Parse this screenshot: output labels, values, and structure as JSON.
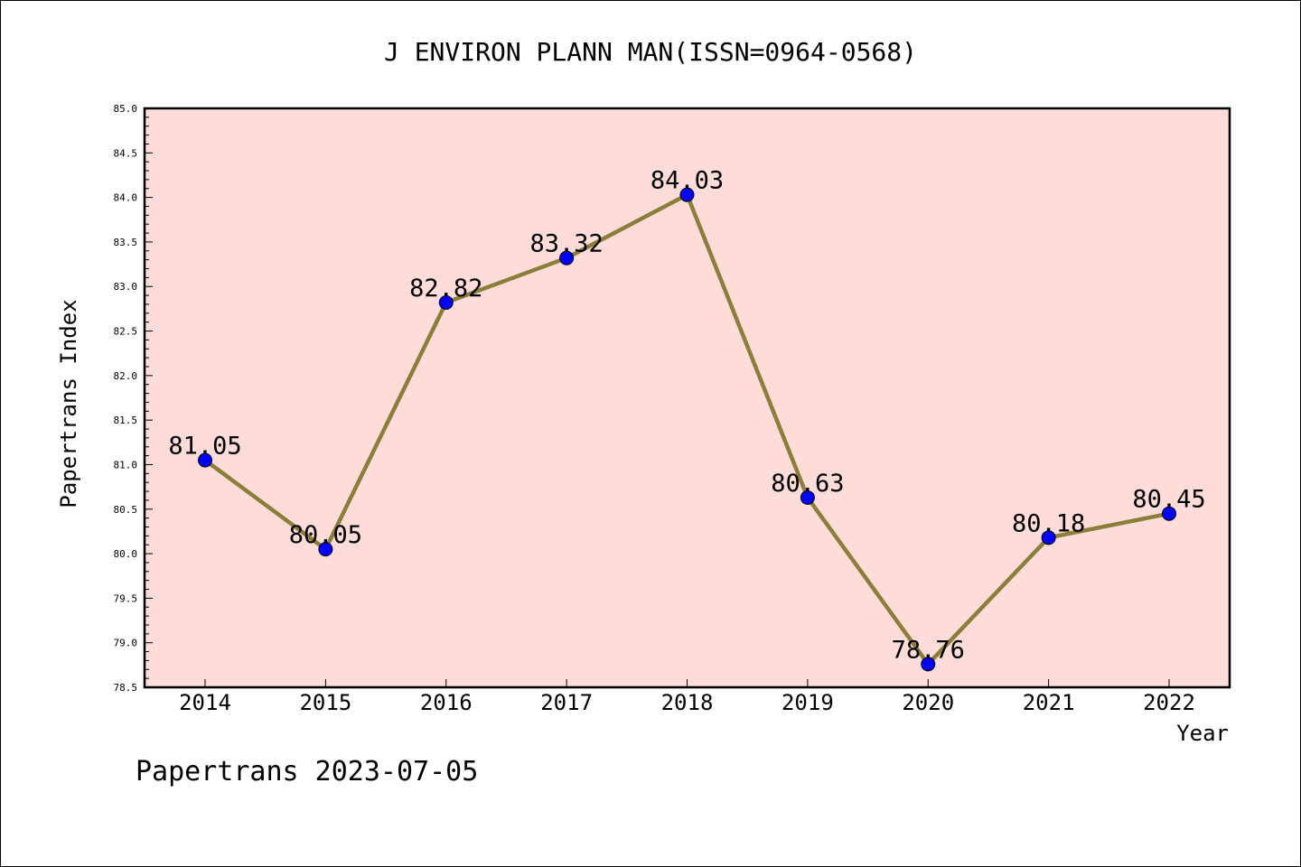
{
  "chart_data": {
    "type": "line",
    "title": "J ENVIRON PLANN MAN(ISSN=0964-0568)",
    "xlabel": "Year",
    "ylabel": "Papertrans Index",
    "categories": [
      "2014",
      "2015",
      "2016",
      "2017",
      "2018",
      "2019",
      "2020",
      "2021",
      "2022"
    ],
    "values": [
      81.05,
      80.05,
      82.82,
      83.32,
      84.03,
      80.63,
      78.76,
      80.18,
      80.45
    ],
    "data_labels": [
      "81.05",
      "80.05",
      "82.82",
      "83.32",
      "84.03",
      "80.63",
      "78.76",
      "80.18",
      "80.45"
    ],
    "ylim": [
      78.5,
      85.0
    ],
    "y_ticks": [
      "78.5",
      "79.0",
      "79.5",
      "80.0",
      "80.5",
      "81.0",
      "81.5",
      "82.0",
      "82.5",
      "83.0",
      "83.5",
      "84.0",
      "84.5",
      "85.0"
    ],
    "grid": false,
    "colors": {
      "plot_background": "#fddcd9",
      "line": "#8b7d3a",
      "marker": "#0000ff"
    }
  },
  "footer": "Papertrans 2023-07-05"
}
